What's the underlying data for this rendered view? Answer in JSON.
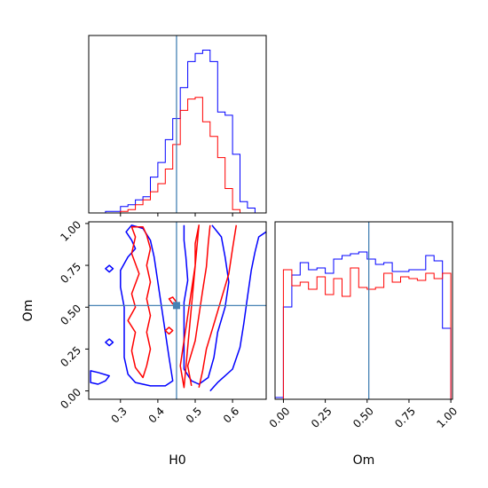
{
  "chart_data": {
    "type": "corner",
    "params": [
      "H0",
      "Om"
    ],
    "truth": {
      "H0": 0.45,
      "Om": 0.51
    },
    "series_colors": [
      "#0000ff",
      "#ff0000"
    ],
    "truth_color": "#4682b4",
    "axes": {
      "H0": {
        "label": "H0",
        "lim": [
          0.215,
          0.69
        ],
        "ticks": [
          0.3,
          0.4,
          0.5,
          0.6
        ],
        "tick_labels": [
          "0.3",
          "0.4",
          "0.5",
          "0.6"
        ]
      },
      "Om": {
        "label": "Om",
        "lim": [
          -0.05,
          1.01
        ],
        "ticks": [
          0.0,
          0.25,
          0.5,
          0.75,
          1.0
        ],
        "tick_labels": [
          "0.00",
          "0.25",
          "0.50",
          "0.75",
          "1.00"
        ]
      }
    },
    "hist_H0": {
      "bins": [
        0.22,
        0.24,
        0.26,
        0.28,
        0.3,
        0.32,
        0.34,
        0.36,
        0.38,
        0.4,
        0.42,
        0.44,
        0.46,
        0.48,
        0.5,
        0.52,
        0.54,
        0.56,
        0.58,
        0.6,
        0.62,
        0.64,
        0.66,
        0.68
      ],
      "series": [
        {
          "values": [
            0,
            0,
            0.01,
            0.01,
            0.04,
            0.05,
            0.08,
            0.1,
            0.22,
            0.31,
            0.45,
            0.58,
            0.77,
            0.93,
            0.98,
            1.0,
            0.93,
            0.62,
            0.6,
            0.36,
            0.07,
            0.03,
            0
          ]
        },
        {
          "values": [
            0,
            0,
            0,
            0,
            0.01,
            0.02,
            0.05,
            0.08,
            0.13,
            0.18,
            0.27,
            0.42,
            0.63,
            0.7,
            0.71,
            0.56,
            0.47,
            0.34,
            0.15,
            0.02,
            0,
            0,
            0
          ]
        }
      ]
    },
    "hist_Om": {
      "bins": [
        -0.05,
        0.0,
        0.05,
        0.1,
        0.15,
        0.2,
        0.25,
        0.3,
        0.35,
        0.4,
        0.45,
        0.5,
        0.55,
        0.6,
        0.65,
        0.7,
        0.75,
        0.8,
        0.85,
        0.9,
        0.95,
        1.0
      ],
      "series": [
        {
          "values": [
            0.01,
            0.52,
            0.7,
            0.77,
            0.73,
            0.74,
            0.71,
            0.79,
            0.81,
            0.82,
            0.83,
            0.79,
            0.76,
            0.77,
            0.72,
            0.72,
            0.73,
            0.73,
            0.81,
            0.78,
            0.4
          ]
        },
        {
          "values": [
            0,
            0.73,
            0.64,
            0.66,
            0.62,
            0.69,
            0.59,
            0.68,
            0.58,
            0.74,
            0.63,
            0.62,
            0.63,
            0.71,
            0.66,
            0.69,
            0.68,
            0.67,
            0.71,
            0.68,
            0.71
          ]
        }
      ]
    },
    "contours": [
      {
        "series": 0,
        "points": [
          [
            0.22,
            0.12
          ],
          [
            0.24,
            0.11
          ],
          [
            0.27,
            0.09
          ],
          [
            0.26,
            0.06
          ],
          [
            0.24,
            0.04
          ],
          [
            0.22,
            0.05
          ]
        ]
      },
      {
        "series": 0,
        "points": [
          [
            0.315,
            0.95
          ],
          [
            0.33,
            0.9
          ],
          [
            0.34,
            0.85
          ],
          [
            0.32,
            0.8
          ],
          [
            0.3,
            0.72
          ],
          [
            0.3,
            0.62
          ],
          [
            0.31,
            0.5
          ],
          [
            0.31,
            0.36
          ],
          [
            0.31,
            0.2
          ],
          [
            0.32,
            0.1
          ],
          [
            0.34,
            0.05
          ],
          [
            0.38,
            0.03
          ],
          [
            0.42,
            0.03
          ],
          [
            0.44,
            0.06
          ],
          [
            0.43,
            0.2
          ],
          [
            0.42,
            0.35
          ],
          [
            0.41,
            0.5
          ],
          [
            0.4,
            0.65
          ],
          [
            0.39,
            0.8
          ],
          [
            0.38,
            0.9
          ],
          [
            0.36,
            0.97
          ],
          [
            0.33,
            0.99
          ]
        ]
      },
      {
        "series": 0,
        "points": [
          [
            0.47,
            0.99
          ],
          [
            0.47,
            0.9
          ],
          [
            0.475,
            0.8
          ],
          [
            0.48,
            0.66
          ],
          [
            0.47,
            0.53
          ],
          [
            0.47,
            0.4
          ],
          [
            0.47,
            0.25
          ],
          [
            0.47,
            0.13
          ],
          [
            0.49,
            0.06
          ],
          [
            0.51,
            0.04
          ],
          [
            0.535,
            0.08
          ],
          [
            0.55,
            0.2
          ],
          [
            0.56,
            0.35
          ],
          [
            0.58,
            0.5
          ],
          [
            0.59,
            0.65
          ],
          [
            0.58,
            0.8
          ],
          [
            0.57,
            0.92
          ],
          [
            0.545,
            0.99
          ]
        ]
      },
      {
        "series": 0,
        "points": [
          [
            0.54,
            0.0
          ],
          [
            0.56,
            0.05
          ],
          [
            0.6,
            0.13
          ],
          [
            0.62,
            0.26
          ],
          [
            0.63,
            0.4
          ],
          [
            0.64,
            0.56
          ],
          [
            0.65,
            0.72
          ],
          [
            0.66,
            0.83
          ],
          [
            0.67,
            0.92
          ],
          [
            0.69,
            0.95
          ]
        ]
      },
      {
        "series": 0,
        "points": [
          [
            0.26,
            0.73
          ],
          [
            0.27,
            0.71
          ],
          [
            0.28,
            0.73
          ],
          [
            0.27,
            0.75
          ]
        ]
      },
      {
        "series": 0,
        "points": [
          [
            0.26,
            0.29
          ],
          [
            0.27,
            0.27
          ],
          [
            0.28,
            0.29
          ],
          [
            0.27,
            0.31
          ]
        ]
      },
      {
        "series": 1,
        "points": [
          [
            0.33,
            0.98
          ],
          [
            0.34,
            0.92
          ],
          [
            0.33,
            0.82
          ],
          [
            0.35,
            0.7
          ],
          [
            0.33,
            0.58
          ],
          [
            0.34,
            0.5
          ],
          [
            0.32,
            0.42
          ],
          [
            0.34,
            0.35
          ],
          [
            0.33,
            0.24
          ],
          [
            0.34,
            0.14
          ],
          [
            0.36,
            0.08
          ],
          [
            0.37,
            0.15
          ],
          [
            0.38,
            0.25
          ],
          [
            0.37,
            0.35
          ],
          [
            0.38,
            0.45
          ],
          [
            0.37,
            0.55
          ],
          [
            0.38,
            0.65
          ],
          [
            0.37,
            0.75
          ],
          [
            0.38,
            0.85
          ],
          [
            0.37,
            0.93
          ],
          [
            0.36,
            0.98
          ]
        ]
      },
      {
        "series": 1,
        "points": [
          [
            0.43,
            0.55
          ],
          [
            0.44,
            0.52
          ],
          [
            0.45,
            0.53
          ],
          [
            0.44,
            0.56
          ]
        ]
      },
      {
        "series": 1,
        "points": [
          [
            0.42,
            0.36
          ],
          [
            0.43,
            0.34
          ],
          [
            0.44,
            0.36
          ],
          [
            0.43,
            0.38
          ]
        ]
      },
      {
        "series": 1,
        "points": [
          [
            0.47,
            0.02
          ],
          [
            0.46,
            0.15
          ],
          [
            0.47,
            0.3
          ],
          [
            0.48,
            0.45
          ],
          [
            0.49,
            0.6
          ],
          [
            0.5,
            0.75
          ],
          [
            0.5,
            0.88
          ],
          [
            0.51,
            0.99
          ]
        ]
      },
      {
        "series": 1,
        "points": [
          [
            0.49,
            0.03
          ],
          [
            0.48,
            0.15
          ],
          [
            0.5,
            0.3
          ],
          [
            0.51,
            0.45
          ],
          [
            0.52,
            0.6
          ],
          [
            0.53,
            0.74
          ],
          [
            0.535,
            0.88
          ],
          [
            0.54,
            0.99
          ]
        ]
      },
      {
        "series": 1,
        "points": [
          [
            0.51,
            0.02
          ],
          [
            0.52,
            0.12
          ],
          [
            0.53,
            0.25
          ],
          [
            0.55,
            0.4
          ],
          [
            0.57,
            0.55
          ],
          [
            0.59,
            0.7
          ],
          [
            0.6,
            0.85
          ],
          [
            0.61,
            0.99
          ]
        ]
      }
    ]
  }
}
